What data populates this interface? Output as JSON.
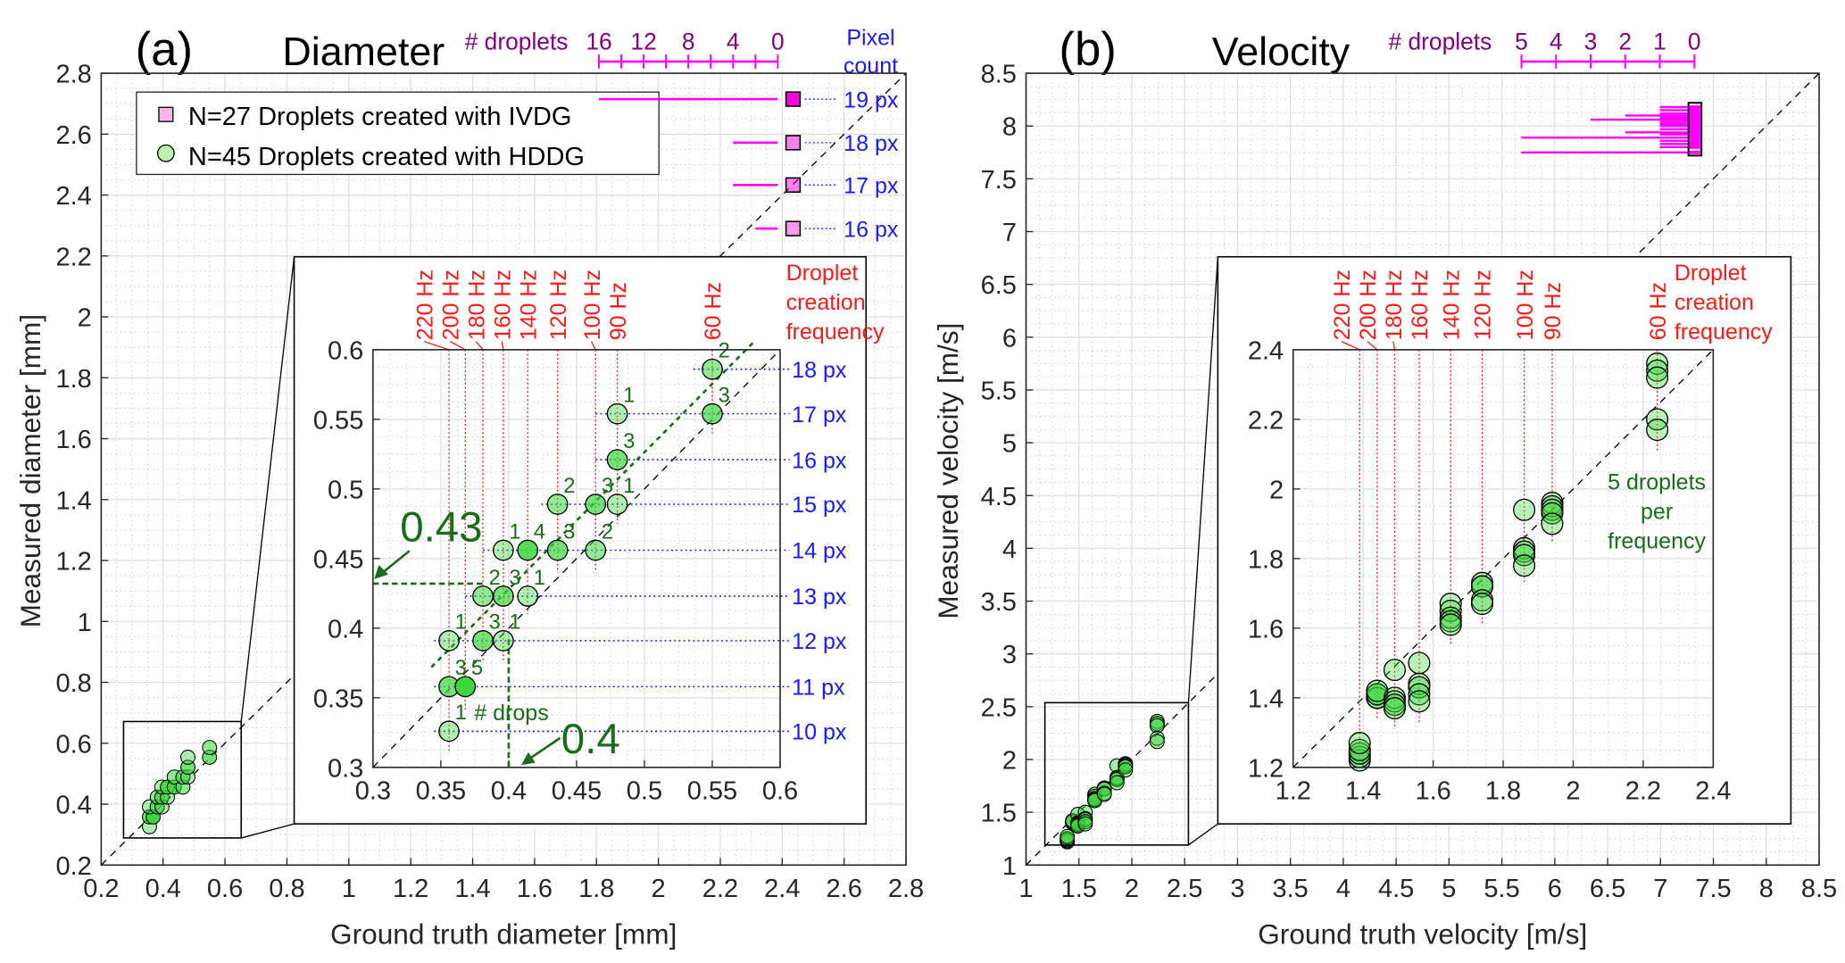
{
  "colors": {
    "hz": "#ff1a1a",
    "pixel": "#1a1aff",
    "annotation": "#1a6b1a",
    "histogram": "#ff00ff",
    "histogram_text": "#800080",
    "hddg": "#66e066",
    "ivdg": "#ff66dd"
  },
  "chart_data": [
    {
      "panel_label": "(a)",
      "title": "Diameter",
      "type": "scatter",
      "xlabel": "Ground truth diameter [mm]",
      "ylabel": "Measured diameter [mm]",
      "xlim": [
        0.2,
        2.8
      ],
      "ylim": [
        0.2,
        2.8
      ],
      "xticks": [
        "0.2",
        "0.4",
        "0.6",
        "0.8",
        "1",
        "1.2",
        "1.4",
        "1.6",
        "1.8",
        "2",
        "2.2",
        "2.4",
        "2.6",
        "2.8"
      ],
      "yticks": [
        "0.2",
        "0.4",
        "0.6",
        "0.8",
        "1",
        "1.2",
        "1.4",
        "1.6",
        "1.8",
        "2",
        "2.2",
        "2.4",
        "2.6",
        "2.8"
      ],
      "grid": true,
      "reference_line": "y = x (dashed)",
      "legend": {
        "placement": "top-left",
        "entries": [
          {
            "label": "N=27 Droplets created with IVDG",
            "marker": "square"
          },
          {
            "label": "N=45 Droplets created with HDDG",
            "marker": "circle"
          }
        ]
      },
      "histogram": {
        "title": "# droplets",
        "ticks": [
          "16",
          "12",
          "8",
          "4",
          "0"
        ],
        "max": 16,
        "unit_label": [
          "Pixel",
          "count"
        ],
        "bars": [
          {
            "label": "19 px",
            "y": 2.715,
            "count": 16
          },
          {
            "label": "18 px",
            "y": 2.572,
            "count": 4
          },
          {
            "label": "17 px",
            "y": 2.433,
            "count": 4
          },
          {
            "label": "16 px",
            "y": 2.29,
            "count": 2
          }
        ]
      },
      "inset": {
        "xlim": [
          0.3,
          0.6
        ],
        "ylim": [
          0.3,
          0.6
        ],
        "xticks": [
          "0.3",
          "0.35",
          "0.4",
          "0.45",
          "0.5",
          "0.55",
          "0.6"
        ],
        "yticks": [
          "0.3",
          "0.35",
          "0.4",
          "0.45",
          "0.5",
          "0.55",
          "0.6"
        ],
        "frequency_title": [
          "Droplet",
          "creation",
          "frequency"
        ],
        "frequencies": [
          {
            "label": "220 Hz",
            "x": 0.356,
            "ymin": 0.31
          },
          {
            "label": "200 Hz",
            "x": 0.368,
            "ymin": 0.34
          },
          {
            "label": "180 Hz",
            "x": 0.381,
            "ymin": 0.375
          },
          {
            "label": "160 Hz",
            "x": 0.396,
            "ymin": 0.375
          },
          {
            "label": "140 Hz",
            "x": 0.414,
            "ymin": 0.41
          },
          {
            "label": "120 Hz",
            "x": 0.436,
            "ymin": 0.44
          },
          {
            "label": "100 Hz",
            "x": 0.464,
            "ymin": 0.44
          },
          {
            "label": "90 Hz",
            "x": 0.48,
            "ymin": 0.475
          },
          {
            "label": "60 Hz",
            "x": 0.55,
            "ymin": 0.54
          }
        ],
        "pixel_rows": [
          {
            "label": "10 px",
            "y": 0.326,
            "xstart": 0.345
          },
          {
            "label": "11 px",
            "y": 0.358,
            "xstart": 0.345
          },
          {
            "label": "12 px",
            "y": 0.391,
            "xstart": 0.345
          },
          {
            "label": "13 px",
            "y": 0.423,
            "xstart": 0.368
          },
          {
            "label": "14 px",
            "y": 0.456,
            "xstart": 0.381
          },
          {
            "label": "15 px",
            "y": 0.489,
            "xstart": 0.424
          },
          {
            "label": "16 px",
            "y": 0.521,
            "xstart": 0.464
          },
          {
            "label": "17 px",
            "y": 0.554,
            "xstart": 0.464
          },
          {
            "label": "18 px",
            "y": 0.586,
            "xstart": 0.536
          }
        ],
        "points": [
          {
            "x": 0.356,
            "y": 0.326,
            "count": "1"
          },
          {
            "x": 0.356,
            "y": 0.358,
            "count": "3"
          },
          {
            "x": 0.368,
            "y": 0.358,
            "count": "5"
          },
          {
            "x": 0.356,
            "y": 0.391,
            "count": "1"
          },
          {
            "x": 0.381,
            "y": 0.391,
            "count": "3"
          },
          {
            "x": 0.396,
            "y": 0.391,
            "count": "1"
          },
          {
            "x": 0.381,
            "y": 0.423,
            "count": "2"
          },
          {
            "x": 0.396,
            "y": 0.423,
            "count": "3"
          },
          {
            "x": 0.414,
            "y": 0.423,
            "count": "1"
          },
          {
            "x": 0.396,
            "y": 0.456,
            "count": "1"
          },
          {
            "x": 0.414,
            "y": 0.456,
            "count": "4"
          },
          {
            "x": 0.436,
            "y": 0.456,
            "count": "3"
          },
          {
            "x": 0.464,
            "y": 0.456,
            "count": "2"
          },
          {
            "x": 0.436,
            "y": 0.489,
            "count": "2"
          },
          {
            "x": 0.464,
            "y": 0.489,
            "count": "3"
          },
          {
            "x": 0.48,
            "y": 0.489,
            "count": "1"
          },
          {
            "x": 0.48,
            "y": 0.521,
            "count": "3"
          },
          {
            "x": 0.48,
            "y": 0.554,
            "count": "1"
          },
          {
            "x": 0.55,
            "y": 0.554,
            "count": "3"
          },
          {
            "x": 0.55,
            "y": 0.586,
            "count": "2"
          }
        ],
        "annotations": {
          "count_label": "# drops",
          "measured_mean": "0.43",
          "measured_mean_value": 0.432,
          "truth_value_label": "0.4",
          "truth_value": 0.4
        }
      }
    },
    {
      "panel_label": "(b)",
      "title": "Velocity",
      "type": "scatter",
      "xlabel": "Ground truth velocity [m/s]",
      "ylabel": "Measured velocity [m/s]",
      "xlim": [
        1,
        8.5
      ],
      "ylim": [
        1,
        8.5
      ],
      "xticks": [
        "1",
        "1.5",
        "2",
        "2.5",
        "3",
        "3.5",
        "4",
        "4.5",
        "5",
        "5.5",
        "6",
        "6.5",
        "7",
        "7.5",
        "8",
        "8.5"
      ],
      "yticks": [
        "1",
        "1.5",
        "2",
        "2.5",
        "3",
        "3.5",
        "4",
        "4.5",
        "5",
        "5.5",
        "6",
        "6.5",
        "7",
        "7.5",
        "8",
        "8.5"
      ],
      "grid": true,
      "reference_line": "y = x (dashed)",
      "histogram": {
        "title": "# droplets",
        "ticks": [
          "5",
          "4",
          "3",
          "2",
          "1",
          "0"
        ],
        "max": 5,
        "bars": [
          {
            "y": 8.18,
            "count": 1
          },
          {
            "y": 8.15,
            "count": 1
          },
          {
            "y": 8.12,
            "count": 1
          },
          {
            "y": 8.1,
            "count": 2
          },
          {
            "y": 8.08,
            "count": 1
          },
          {
            "y": 8.06,
            "count": 3
          },
          {
            "y": 8.04,
            "count": 1
          },
          {
            "y": 8.02,
            "count": 1
          },
          {
            "y": 8.0,
            "count": 1
          },
          {
            "y": 7.97,
            "count": 1
          },
          {
            "y": 7.94,
            "count": 2
          },
          {
            "y": 7.92,
            "count": 1
          },
          {
            "y": 7.89,
            "count": 5
          },
          {
            "y": 7.86,
            "count": 1
          },
          {
            "y": 7.83,
            "count": 1
          },
          {
            "y": 7.8,
            "count": 1
          },
          {
            "y": 7.75,
            "count": 5
          }
        ]
      },
      "inset": {
        "xlim": [
          1.2,
          2.4
        ],
        "ylim": [
          1.2,
          2.4
        ],
        "xticks": [
          "1.2",
          "1.4",
          "1.6",
          "1.8",
          "2",
          "2.2",
          "2.4"
        ],
        "yticks": [
          "1.2",
          "1.4",
          "1.6",
          "1.8",
          "2",
          "2.2",
          "2.4"
        ],
        "frequency_title": [
          "Droplet",
          "creation",
          "frequency"
        ],
        "frequencies": [
          {
            "label": "220 Hz",
            "x": 1.39,
            "ymin": 1.21
          },
          {
            "label": "200 Hz",
            "x": 1.44,
            "ymin": 1.34
          },
          {
            "label": "180 Hz",
            "x": 1.49,
            "ymin": 1.31
          },
          {
            "label": "160 Hz",
            "x": 1.56,
            "ymin": 1.33
          },
          {
            "label": "140 Hz",
            "x": 1.65,
            "ymin": 1.55
          },
          {
            "label": "120 Hz",
            "x": 1.74,
            "ymin": 1.61
          },
          {
            "label": "100 Hz",
            "x": 1.86,
            "ymin": 1.73
          },
          {
            "label": "90 Hz",
            "x": 1.94,
            "ymin": 1.85
          },
          {
            "label": "60 Hz",
            "x": 2.24,
            "ymin": 2.11
          }
        ],
        "points": [
          {
            "x": 1.39,
            "y": 1.22
          },
          {
            "x": 1.39,
            "y": 1.23
          },
          {
            "x": 1.39,
            "y": 1.24
          },
          {
            "x": 1.39,
            "y": 1.25
          },
          {
            "x": 1.39,
            "y": 1.27
          },
          {
            "x": 1.44,
            "y": 1.4
          },
          {
            "x": 1.44,
            "y": 1.4
          },
          {
            "x": 1.44,
            "y": 1.41
          },
          {
            "x": 1.44,
            "y": 1.41
          },
          {
            "x": 1.44,
            "y": 1.42
          },
          {
            "x": 1.49,
            "y": 1.48
          },
          {
            "x": 1.49,
            "y": 1.4
          },
          {
            "x": 1.49,
            "y": 1.39
          },
          {
            "x": 1.49,
            "y": 1.38
          },
          {
            "x": 1.49,
            "y": 1.37
          },
          {
            "x": 1.56,
            "y": 1.5
          },
          {
            "x": 1.56,
            "y": 1.44
          },
          {
            "x": 1.56,
            "y": 1.43
          },
          {
            "x": 1.56,
            "y": 1.41
          },
          {
            "x": 1.56,
            "y": 1.39
          },
          {
            "x": 1.65,
            "y": 1.67
          },
          {
            "x": 1.65,
            "y": 1.65
          },
          {
            "x": 1.65,
            "y": 1.63
          },
          {
            "x": 1.65,
            "y": 1.62
          },
          {
            "x": 1.65,
            "y": 1.61
          },
          {
            "x": 1.74,
            "y": 1.73
          },
          {
            "x": 1.74,
            "y": 1.72
          },
          {
            "x": 1.74,
            "y": 1.72
          },
          {
            "x": 1.74,
            "y": 1.68
          },
          {
            "x": 1.74,
            "y": 1.67
          },
          {
            "x": 1.86,
            "y": 1.94
          },
          {
            "x": 1.86,
            "y": 1.83
          },
          {
            "x": 1.86,
            "y": 1.82
          },
          {
            "x": 1.86,
            "y": 1.81
          },
          {
            "x": 1.86,
            "y": 1.78
          },
          {
            "x": 1.94,
            "y": 1.96
          },
          {
            "x": 1.94,
            "y": 1.95
          },
          {
            "x": 1.94,
            "y": 1.94
          },
          {
            "x": 1.94,
            "y": 1.93
          },
          {
            "x": 1.94,
            "y": 1.9
          },
          {
            "x": 2.24,
            "y": 2.36
          },
          {
            "x": 2.24,
            "y": 2.34
          },
          {
            "x": 2.24,
            "y": 2.32
          },
          {
            "x": 2.24,
            "y": 2.2
          },
          {
            "x": 2.24,
            "y": 2.17
          }
        ],
        "annotations": {
          "note": [
            "5 droplets",
            "per",
            "frequency"
          ]
        }
      }
    }
  ]
}
